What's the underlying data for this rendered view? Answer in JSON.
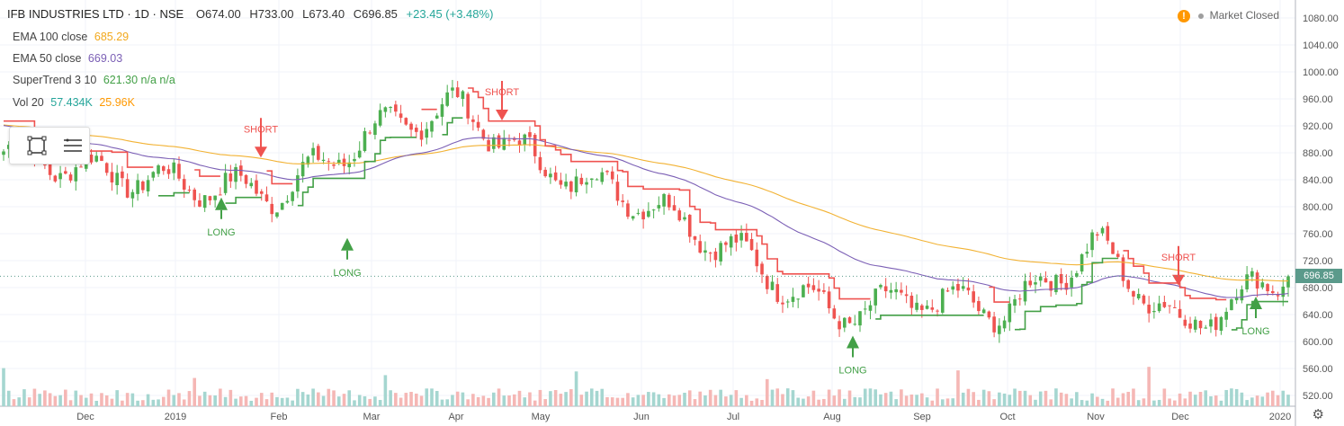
{
  "header": {
    "symbol": "IFB INDUSTRIES LTD · 1D · NSE",
    "open": "O674.00",
    "high": "H733.00",
    "low": "L673.40",
    "close": "C696.85",
    "change": "+23.45 (+3.48%)"
  },
  "indicators": [
    {
      "name": "EMA 100 close",
      "value": "685.29",
      "color": "#f2b233"
    },
    {
      "name": "EMA 50 close",
      "value": "669.03",
      "color": "#7b5fb5"
    },
    {
      "name": "SuperTrend 3 10",
      "value": "621.30 n/a n/a",
      "color": "#43a047"
    },
    {
      "name": "Vol 20",
      "value": "57.434K",
      "value2": "25.96K",
      "color": "#26a69a",
      "color2": "#ff9800"
    }
  ],
  "status": {
    "label": "Market Closed",
    "warn_glyph": "!"
  },
  "price_tag": "696.85",
  "toolbox_icons": [
    "rectangle-tool-icon",
    "menu-lines-icon"
  ],
  "settings_icon": "gear-icon",
  "colors": {
    "up": "#4caf50",
    "down": "#ef5350",
    "st_up": "#43a047",
    "st_down": "#ef5350",
    "ema100": "#f2b233",
    "ema50": "#7b5fb5",
    "vol_up": "#a5d6d0",
    "vol_down": "#f5b7b5"
  },
  "chart_data": {
    "type": "candlestick",
    "y_axis": {
      "min": 520,
      "max": 1080,
      "ticks": [
        520,
        560,
        600,
        640,
        680,
        720,
        760,
        800,
        840,
        880,
        920,
        960,
        1000,
        1040,
        1080
      ],
      "position": "right"
    },
    "x_axis": {
      "labels": [
        "Dec",
        "2019",
        "Feb",
        "Mar",
        "Apr",
        "May",
        "Jun",
        "Jul",
        "Aug",
        "Sep",
        "Oct",
        "Nov",
        "Dec",
        "2020"
      ]
    },
    "signals": [
      {
        "label": "SHORT",
        "type": "short",
        "month": "Jan",
        "price": 905
      },
      {
        "label": "LONG",
        "type": "long",
        "month": "Jan",
        "price": 795
      },
      {
        "label": "LONG",
        "type": "long",
        "month": "Feb",
        "price": 735
      },
      {
        "label": "SHORT",
        "type": "short",
        "month": "Apr",
        "price": 960
      },
      {
        "label": "LONG",
        "type": "long",
        "month": "Aug",
        "price": 590
      },
      {
        "label": "SHORT",
        "type": "short",
        "month": "Nov",
        "price": 715
      },
      {
        "label": "LONG",
        "type": "long",
        "month": "Dec",
        "price": 648
      }
    ],
    "key_points": [
      {
        "month": "Dec",
        "close": 855
      },
      {
        "month": "2019",
        "close": 835
      },
      {
        "month": "Feb",
        "close": 820
      },
      {
        "month": "Mar",
        "close": 910
      },
      {
        "month": "Apr",
        "close": 950
      },
      {
        "month": "May",
        "close": 860
      },
      {
        "month": "Jun",
        "close": 810
      },
      {
        "month": "Jul",
        "close": 735
      },
      {
        "month": "Aug",
        "close": 640
      },
      {
        "month": "Sep",
        "close": 665
      },
      {
        "month": "Oct",
        "close": 645
      },
      {
        "month": "Nov",
        "close": 745
      },
      {
        "month": "Dec",
        "close": 620
      },
      {
        "month": "2020",
        "close": 696.85
      }
    ],
    "last_price": 696.85
  }
}
